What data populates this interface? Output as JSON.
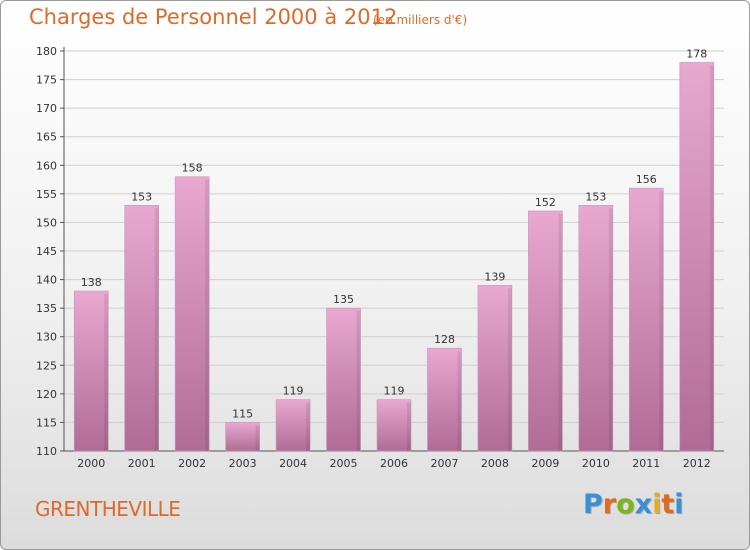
{
  "header": {
    "title": "Charges de Personnel 2000 à 2012",
    "subtitle": "(en milliers d'€)"
  },
  "footer": {
    "commune": "GRENTHEVILLE",
    "brand": "Proxiti",
    "brand_letters": [
      {
        "char": "P",
        "color": "#3a8fd6"
      },
      {
        "char": "r",
        "color": "#e06a1e"
      },
      {
        "char": "o",
        "color": "#7ab51d"
      },
      {
        "char": "x",
        "color": "#3a8fd6"
      },
      {
        "char": "i",
        "color": "#e0b020"
      },
      {
        "char": "t",
        "color": "#e06a1e"
      },
      {
        "char": "i",
        "color": "#3a8fd6"
      }
    ]
  },
  "chart_data": {
    "type": "bar",
    "categories": [
      "2000",
      "2001",
      "2002",
      "2003",
      "2004",
      "2005",
      "2006",
      "2007",
      "2008",
      "2009",
      "2010",
      "2011",
      "2012"
    ],
    "values": [
      138,
      153,
      158,
      115,
      119,
      135,
      119,
      128,
      139,
      152,
      153,
      156,
      178
    ],
    "value_labels": [
      "138",
      "153",
      "158",
      "115",
      "119",
      "135",
      "119",
      "128",
      "139",
      "152",
      "153",
      "156",
      "178"
    ],
    "ylim": [
      110,
      180
    ],
    "yticks": [
      "110",
      "115",
      "120",
      "125",
      "130",
      "135",
      "140",
      "145",
      "150",
      "155",
      "160",
      "165",
      "170",
      "175",
      "180"
    ],
    "grid": true,
    "bar_color_top": "#e8a8d0",
    "bar_color_bottom": "#b06c96"
  }
}
